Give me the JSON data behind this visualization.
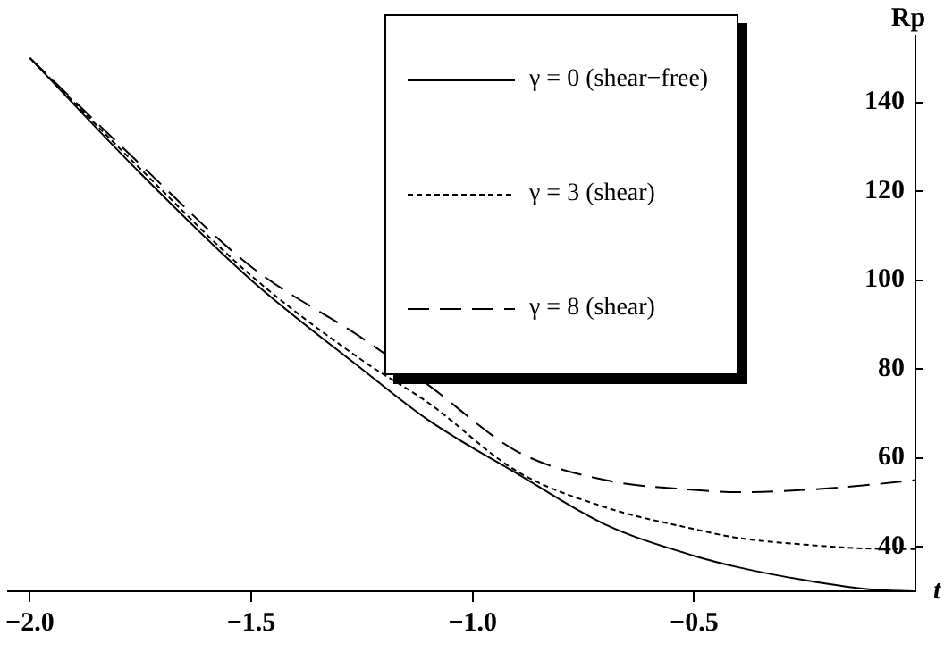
{
  "chart_data": {
    "type": "line",
    "xlabel": "t",
    "ylabel": "Rp",
    "x": [
      -2,
      -1.75,
      -1.5,
      -1.25,
      -1.1,
      -0.9,
      -0.7,
      -0.5,
      -0.4,
      -0.25,
      -0.1,
      0
    ],
    "series": [
      {
        "name": "γ = 0   (shear−free)",
        "color": "#000000",
        "line_style": "solid",
        "values": [
          150,
          124,
          100,
          80,
          68.5,
          56.5,
          45,
          38,
          35.4,
          32.5,
          30.4,
          30
        ]
      },
      {
        "name": "γ = 3   (shear)",
        "color": "#000000",
        "line_style": "dotted",
        "values": [
          150,
          125,
          101,
          82,
          72.4,
          57,
          48.9,
          44,
          42,
          40.5,
          39.6,
          39.5
        ]
      },
      {
        "name": "γ = 8   (shear)",
        "color": "#000000",
        "line_style": "dashed",
        "values": [
          150,
          126,
          103,
          87,
          76.4,
          61.5,
          55,
          52.8,
          52.3,
          52.8,
          54,
          55
        ]
      }
    ],
    "xlim": [
      -2.05,
      0
    ],
    "xticks": [
      {
        "value": -2,
        "label": "−2.0"
      },
      {
        "value": -1.5,
        "label": "−1.5"
      },
      {
        "value": -1,
        "label": "−1.0"
      },
      {
        "value": -0.5,
        "label": "−0.5"
      }
    ],
    "ylim": [
      30,
      155
    ],
    "yticks": [
      40,
      60,
      80,
      100,
      120,
      140
    ],
    "grid": false,
    "legend": "top",
    "marker": "none"
  }
}
